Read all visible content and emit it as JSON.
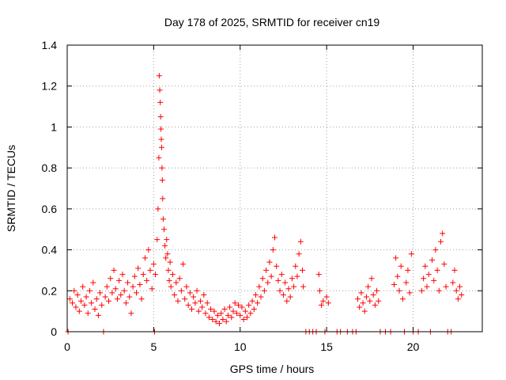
{
  "chart_data": {
    "type": "scatter",
    "title": "Day 178 of 2025, SRMTID for receiver cn19",
    "xlabel": "GPS time / hours",
    "ylabel": "SRMTID / TECUs",
    "xlim": [
      0,
      24
    ],
    "ylim": [
      0,
      1.4
    ],
    "xticks": [
      0,
      5,
      10,
      15,
      20
    ],
    "xtick_labels": [
      "0",
      "5",
      "10",
      "15",
      "20"
    ],
    "yticks": [
      0,
      0.2,
      0.4,
      0.6,
      0.8,
      1,
      1.2,
      1.4
    ],
    "ytick_labels": [
      "0",
      "0.2",
      "0.4",
      "0.6",
      "0.8",
      "1",
      "1.2",
      "1.4"
    ],
    "grid": true,
    "marker": "+",
    "series": [
      {
        "name": "SRMTID",
        "color": "#ff0000",
        "points": [
          [
            0.05,
            0.0
          ],
          [
            0.15,
            0.16
          ],
          [
            0.3,
            0.14
          ],
          [
            0.4,
            0.2
          ],
          [
            0.5,
            0.12
          ],
          [
            0.6,
            0.18
          ],
          [
            0.7,
            0.1
          ],
          [
            0.8,
            0.15
          ],
          [
            0.9,
            0.22
          ],
          [
            1.0,
            0.13
          ],
          [
            1.1,
            0.17
          ],
          [
            1.2,
            0.09
          ],
          [
            1.3,
            0.2
          ],
          [
            1.4,
            0.14
          ],
          [
            1.5,
            0.24
          ],
          [
            1.6,
            0.11
          ],
          [
            1.7,
            0.16
          ],
          [
            1.8,
            0.08
          ],
          [
            1.9,
            0.19
          ],
          [
            2.0,
            0.13
          ],
          [
            2.1,
            0.0
          ],
          [
            2.2,
            0.17
          ],
          [
            2.3,
            0.22
          ],
          [
            2.4,
            0.15
          ],
          [
            2.5,
            0.26
          ],
          [
            2.6,
            0.19
          ],
          [
            2.7,
            0.3
          ],
          [
            2.8,
            0.21
          ],
          [
            2.9,
            0.16
          ],
          [
            3.0,
            0.25
          ],
          [
            3.1,
            0.18
          ],
          [
            3.2,
            0.28
          ],
          [
            3.3,
            0.2
          ],
          [
            3.4,
            0.14
          ],
          [
            3.5,
            0.24
          ],
          [
            3.6,
            0.17
          ],
          [
            3.7,
            0.09
          ],
          [
            3.8,
            0.22
          ],
          [
            3.9,
            0.27
          ],
          [
            4.0,
            0.19
          ],
          [
            4.1,
            0.31
          ],
          [
            4.2,
            0.23
          ],
          [
            4.3,
            0.16
          ],
          [
            4.4,
            0.28
          ],
          [
            4.5,
            0.36
          ],
          [
            4.6,
            0.25
          ],
          [
            4.7,
            0.4
          ],
          [
            4.8,
            0.3
          ],
          [
            4.9,
            0.21
          ],
          [
            5.0,
            0.33
          ],
          [
            5.05,
            0.0
          ],
          [
            5.1,
            0.28
          ],
          [
            5.2,
            0.45
          ],
          [
            5.25,
            0.6
          ],
          [
            5.3,
            0.85
          ],
          [
            5.32,
            1.25
          ],
          [
            5.35,
            1.18
          ],
          [
            5.38,
            1.12
          ],
          [
            5.4,
            1.05
          ],
          [
            5.42,
            0.99
          ],
          [
            5.44,
            0.94
          ],
          [
            5.46,
            0.9
          ],
          [
            5.48,
            0.8
          ],
          [
            5.5,
            0.74
          ],
          [
            5.52,
            0.65
          ],
          [
            5.55,
            0.55
          ],
          [
            5.6,
            0.5
          ],
          [
            5.65,
            0.42
          ],
          [
            5.7,
            0.36
          ],
          [
            5.75,
            0.45
          ],
          [
            5.8,
            0.38
          ],
          [
            5.85,
            0.3
          ],
          [
            5.9,
            0.25
          ],
          [
            5.95,
            0.34
          ],
          [
            6.0,
            0.22
          ],
          [
            6.1,
            0.28
          ],
          [
            6.2,
            0.18
          ],
          [
            6.3,
            0.24
          ],
          [
            6.4,
            0.15
          ],
          [
            6.5,
            0.26
          ],
          [
            6.6,
            0.2
          ],
          [
            6.7,
            0.33
          ],
          [
            6.8,
            0.16
          ],
          [
            6.9,
            0.22
          ],
          [
            7.0,
            0.13
          ],
          [
            7.1,
            0.19
          ],
          [
            7.2,
            0.11
          ],
          [
            7.3,
            0.17
          ],
          [
            7.4,
            0.14
          ],
          [
            7.5,
            0.2
          ],
          [
            7.6,
            0.1
          ],
          [
            7.7,
            0.15
          ],
          [
            7.8,
            0.12
          ],
          [
            7.9,
            0.18
          ],
          [
            8.0,
            0.09
          ],
          [
            8.1,
            0.14
          ],
          [
            8.2,
            0.07
          ],
          [
            8.3,
            0.11
          ],
          [
            8.4,
            0.06
          ],
          [
            8.5,
            0.1
          ],
          [
            8.6,
            0.05
          ],
          [
            8.7,
            0.08
          ],
          [
            8.8,
            0.04
          ],
          [
            8.9,
            0.09
          ],
          [
            9.0,
            0.06
          ],
          [
            9.1,
            0.11
          ],
          [
            9.2,
            0.05
          ],
          [
            9.3,
            0.08
          ],
          [
            9.4,
            0.12
          ],
          [
            9.5,
            0.07
          ],
          [
            9.6,
            0.1
          ],
          [
            9.7,
            0.14
          ],
          [
            9.8,
            0.09
          ],
          [
            9.9,
            0.13
          ],
          [
            10.0,
            0.08
          ],
          [
            10.1,
            0.12
          ],
          [
            10.2,
            0.06
          ],
          [
            10.3,
            0.1
          ],
          [
            10.4,
            0.07
          ],
          [
            10.5,
            0.13
          ],
          [
            10.6,
            0.09
          ],
          [
            10.7,
            0.15
          ],
          [
            10.8,
            0.11
          ],
          [
            10.9,
            0.18
          ],
          [
            11.0,
            0.14
          ],
          [
            11.1,
            0.22
          ],
          [
            11.2,
            0.17
          ],
          [
            11.3,
            0.26
          ],
          [
            11.4,
            0.2
          ],
          [
            11.5,
            0.3
          ],
          [
            11.6,
            0.24
          ],
          [
            11.7,
            0.34
          ],
          [
            11.8,
            0.27
          ],
          [
            11.9,
            0.4
          ],
          [
            12.0,
            0.46
          ],
          [
            12.1,
            0.32
          ],
          [
            12.2,
            0.25
          ],
          [
            12.3,
            0.2
          ],
          [
            12.4,
            0.28
          ],
          [
            12.5,
            0.18
          ],
          [
            12.6,
            0.24
          ],
          [
            12.7,
            0.15
          ],
          [
            12.8,
            0.21
          ],
          [
            12.9,
            0.17
          ],
          [
            13.0,
            0.26
          ],
          [
            13.1,
            0.22
          ],
          [
            13.2,
            0.32
          ],
          [
            13.3,
            0.27
          ],
          [
            13.4,
            0.38
          ],
          [
            13.5,
            0.44
          ],
          [
            13.6,
            0.3
          ],
          [
            13.65,
            0.22
          ],
          [
            13.8,
            0.0
          ],
          [
            14.0,
            0.0
          ],
          [
            14.2,
            0.0
          ],
          [
            14.4,
            0.0
          ],
          [
            14.55,
            0.28
          ],
          [
            14.6,
            0.2
          ],
          [
            14.7,
            0.13
          ],
          [
            14.8,
            0.15
          ],
          [
            14.9,
            0.0
          ],
          [
            15.0,
            0.17
          ],
          [
            15.1,
            0.14
          ],
          [
            15.6,
            0.0
          ],
          [
            15.8,
            0.0
          ],
          [
            16.2,
            0.0
          ],
          [
            16.5,
            0.0
          ],
          [
            16.7,
            0.0
          ],
          [
            16.8,
            0.16
          ],
          [
            16.9,
            0.12
          ],
          [
            17.0,
            0.19
          ],
          [
            17.1,
            0.14
          ],
          [
            17.2,
            0.1
          ],
          [
            17.3,
            0.17
          ],
          [
            17.4,
            0.22
          ],
          [
            17.5,
            0.15
          ],
          [
            17.6,
            0.26
          ],
          [
            17.7,
            0.18
          ],
          [
            17.8,
            0.13
          ],
          [
            17.9,
            0.2
          ],
          [
            18.0,
            0.15
          ],
          [
            18.1,
            0.0
          ],
          [
            18.4,
            0.0
          ],
          [
            18.7,
            0.0
          ],
          [
            18.9,
            0.23
          ],
          [
            19.0,
            0.36
          ],
          [
            19.1,
            0.27
          ],
          [
            19.2,
            0.2
          ],
          [
            19.3,
            0.32
          ],
          [
            19.4,
            0.16
          ],
          [
            19.5,
            0.0
          ],
          [
            19.6,
            0.24
          ],
          [
            19.7,
            0.3
          ],
          [
            19.8,
            0.19
          ],
          [
            19.9,
            0.38
          ],
          [
            20.0,
            0.0
          ],
          [
            20.3,
            0.0
          ],
          [
            20.5,
            0.2
          ],
          [
            20.6,
            0.26
          ],
          [
            20.7,
            0.32
          ],
          [
            20.8,
            0.22
          ],
          [
            20.9,
            0.28
          ],
          [
            21.0,
            0.0
          ],
          [
            21.1,
            0.35
          ],
          [
            21.2,
            0.25
          ],
          [
            21.3,
            0.4
          ],
          [
            21.4,
            0.3
          ],
          [
            21.5,
            0.2
          ],
          [
            21.6,
            0.44
          ],
          [
            21.7,
            0.48
          ],
          [
            21.8,
            0.33
          ],
          [
            21.9,
            0.22
          ],
          [
            22.0,
            0.0
          ],
          [
            22.2,
            0.0
          ],
          [
            22.3,
            0.24
          ],
          [
            22.4,
            0.3
          ],
          [
            22.5,
            0.2
          ],
          [
            22.6,
            0.16
          ],
          [
            22.7,
            0.22
          ],
          [
            22.8,
            0.18
          ]
        ]
      }
    ]
  }
}
